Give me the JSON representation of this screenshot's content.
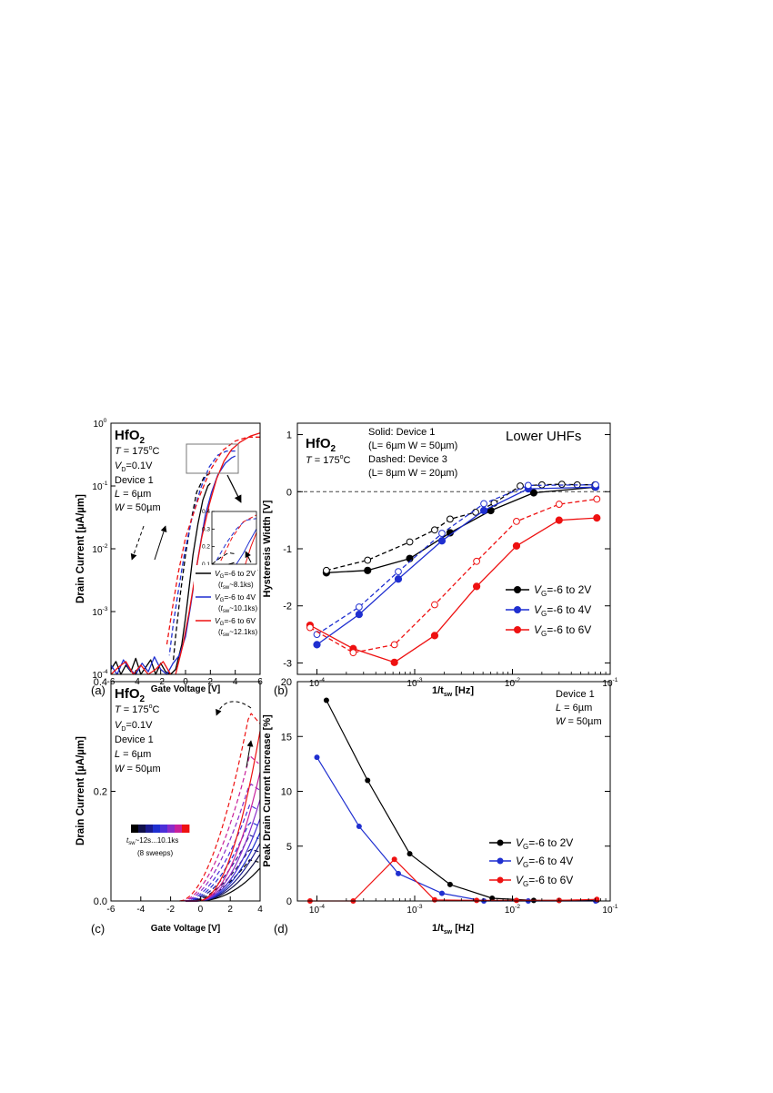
{
  "chart_data": [
    {
      "id": "a",
      "type": "line",
      "panel_label": "(a)",
      "xlabel": "Gate Voltage [V]",
      "ylabel": "Drain Current [µA/µm]",
      "yscale": "log",
      "xlim": [
        -6,
        6
      ],
      "ylim_exp": [
        -4,
        0
      ],
      "xticks": [
        "-6",
        "-4",
        "-2",
        "0",
        "2",
        "4",
        "6"
      ],
      "yticks": [
        {
          "exp": -4,
          "base": "10",
          "sup": "-4"
        },
        {
          "exp": -3,
          "base": "10",
          "sup": "-3"
        },
        {
          "exp": -2,
          "base": "10",
          "sup": "-2"
        },
        {
          "exp": -1,
          "base": "10",
          "sup": "-1"
        },
        {
          "exp": 0,
          "base": "10",
          "sup": "0"
        }
      ],
      "info": {
        "material": "HfO",
        "material_sub": "2",
        "temp_var": "T",
        "temp_value": " = 175",
        "temp_unit": "C",
        "temp_deg": "o",
        "vd_var": "V",
        "vd_sub": "D",
        "vd_value": "=0.1V",
        "device": "Device 1",
        "l_var": "L",
        "l_value": " = 6µm",
        "w_var": "W",
        "w_value": " = 50µm"
      },
      "legend": [
        {
          "vg": "V",
          "vg_sub": "G",
          "range": "=-6 to 2V",
          "t": "t",
          "t_sub": "sw",
          "tval": "~8.1ks",
          "color": "#000000"
        },
        {
          "vg": "V",
          "vg_sub": "G",
          "range": "=-6 to 4V",
          "t": "t",
          "t_sub": "sw",
          "tval": "~10.1ks",
          "color": "#1f2fd0"
        },
        {
          "vg": "V",
          "vg_sub": "G",
          "range": "=-6 to 6V",
          "t": "t",
          "t_sub": "sw",
          "tval": "~12.1ks",
          "color": "#ee1111"
        }
      ],
      "series": [
        {
          "name": "-6 to 2V forward",
          "color": "#000000",
          "dashed": false,
          "x": [
            -1.2,
            -0.8,
            -0.3,
            0.0,
            0.3,
            0.6,
            1.0,
            1.4,
            1.8,
            2.0
          ],
          "y": [
            0.0001,
            0.00012,
            0.0003,
            0.0008,
            0.0025,
            0.008,
            0.025,
            0.06,
            0.1,
            0.11
          ]
        },
        {
          "name": "-6 to 2V reverse",
          "color": "#000000",
          "dashed": true,
          "x": [
            2.0,
            1.5,
            0.9,
            0.4,
            0.0,
            -0.4,
            -0.8,
            -1.0
          ],
          "y": [
            0.16,
            0.14,
            0.08,
            0.025,
            0.008,
            0.002,
            0.0004,
            0.00015
          ]
        },
        {
          "name": "-6 to 4V forward",
          "color": "#1f2fd0",
          "dashed": false,
          "x": [
            -1.0,
            -0.5,
            0.0,
            0.4,
            0.8,
            1.2,
            1.6,
            2.1,
            2.6,
            3.2,
            3.7,
            4.0
          ],
          "y": [
            0.00015,
            0.0002,
            0.0004,
            0.0012,
            0.004,
            0.012,
            0.035,
            0.08,
            0.15,
            0.23,
            0.28,
            0.3
          ]
        },
        {
          "name": "-6 to 4V reverse",
          "color": "#1f2fd0",
          "dashed": true,
          "x": [
            4.0,
            3.3,
            2.6,
            1.9,
            1.2,
            0.5,
            -0.1,
            -0.6,
            -1.0,
            -1.3
          ],
          "y": [
            0.36,
            0.36,
            0.31,
            0.2,
            0.09,
            0.03,
            0.008,
            0.002,
            0.0006,
            0.0002
          ]
        },
        {
          "name": "-6 to 6V forward",
          "color": "#ee1111",
          "dashed": false,
          "x": [
            -0.8,
            -0.2,
            0.3,
            0.8,
            1.3,
            1.9,
            2.5,
            3.1,
            3.7,
            4.4,
            5.2,
            6.0
          ],
          "y": [
            0.0001,
            0.0003,
            0.001,
            0.004,
            0.015,
            0.05,
            0.13,
            0.25,
            0.38,
            0.5,
            0.62,
            0.7
          ]
        },
        {
          "name": "-6 to 6V reverse",
          "color": "#ee1111",
          "dashed": true,
          "x": [
            6.0,
            5.0,
            4.0,
            3.0,
            2.0,
            1.0,
            0.0,
            -0.6,
            -1.1,
            -1.5
          ],
          "y": [
            0.6,
            0.6,
            0.52,
            0.37,
            0.18,
            0.06,
            0.015,
            0.004,
            0.001,
            0.0003
          ]
        },
        {
          "name": "noise black",
          "color": "#000000",
          "dashed": false,
          "x": [
            -6.0,
            -5.6,
            -5.2,
            -4.8,
            -4.4,
            -4.0,
            -3.6,
            -3.2,
            -2.8,
            -2.4,
            -2.0,
            -1.6,
            -1.2
          ],
          "y": [
            0.00012,
            0.00016,
            0.0001,
            0.00014,
            0.00011,
            0.00018,
            0.0001,
            0.00013,
            0.00017,
            0.0001,
            0.00015,
            0.00011,
            0.0001
          ]
        },
        {
          "name": "noise blue",
          "color": "#1f2fd0",
          "dashed": false,
          "x": [
            -6.0,
            -5.5,
            -5.0,
            -4.5,
            -4.0,
            -3.5,
            -3.0,
            -2.5,
            -2.0,
            -1.5,
            -1.0
          ],
          "y": [
            0.00014,
            0.0001,
            0.00017,
            0.00012,
            0.0001,
            0.00015,
            0.00011,
            0.00019,
            0.00012,
            0.0001,
            0.00015
          ]
        },
        {
          "name": "noise red",
          "color": "#ee1111",
          "dashed": false,
          "x": [
            -6.0,
            -5.4,
            -4.8,
            -4.2,
            -3.6,
            -3.0,
            -2.4,
            -1.8,
            -1.2
          ],
          "y": [
            0.0001,
            0.00013,
            0.00016,
            0.0001,
            0.00014,
            0.0001,
            0.00012,
            0.00016,
            0.0001
          ]
        }
      ],
      "inset": {
        "xlim": [
          0,
          4
        ],
        "ylim": [
          0.1,
          0.4
        ],
        "xticks": [
          "0",
          "2",
          "4"
        ],
        "yticks": [
          "0.1",
          "0.2",
          "0.3",
          "0.4"
        ],
        "series": [
          {
            "color": "#000000",
            "dashed": true,
            "x": [
              0.0,
              0.8,
              1.5,
              2.0
            ],
            "y": [
              0.1,
              0.14,
              0.165,
              0.16
            ]
          },
          {
            "color": "#000000",
            "dashed": false,
            "x": [
              1.5,
              1.8,
              2.0
            ],
            "y": [
              0.1,
              0.105,
              0.11
            ]
          },
          {
            "color": "#1f2fd0",
            "dashed": true,
            "x": [
              0.4,
              1.3,
              2.2,
              3.0,
              4.0
            ],
            "y": [
              0.12,
              0.22,
              0.3,
              0.35,
              0.36
            ]
          },
          {
            "color": "#1f2fd0",
            "dashed": false,
            "x": [
              2.2,
              2.8,
              3.3,
              4.0
            ],
            "y": [
              0.1,
              0.16,
              0.22,
              0.3
            ]
          },
          {
            "color": "#ee1111",
            "dashed": true,
            "x": [
              0.8,
              1.8,
              2.8,
              4.0
            ],
            "y": [
              0.12,
              0.25,
              0.34,
              0.38
            ]
          },
          {
            "color": "#ee1111",
            "dashed": false,
            "x": [
              3.0,
              3.5,
              4.0
            ],
            "y": [
              0.1,
              0.2,
              0.28
            ]
          }
        ]
      }
    },
    {
      "id": "b",
      "type": "line",
      "panel_label": "(b)",
      "xlabel": "1/t",
      "xlabel_sub": "sw",
      "xlabel_tail": " [Hz]",
      "ylabel": "Hysteresis Width [V]",
      "xscale": "log",
      "xlim_exp": [
        -4.2,
        -1
      ],
      "ylim": [
        -3.2,
        1.2
      ],
      "xticks": [
        {
          "exp": -4,
          "base": "10",
          "sup": "-4"
        },
        {
          "exp": -3,
          "base": "10",
          "sup": "-3"
        },
        {
          "exp": -2,
          "base": "10",
          "sup": "-2"
        },
        {
          "exp": -1,
          "base": "10",
          "sup": "-1"
        }
      ],
      "yticks": [
        "-3",
        "-2",
        "-1",
        "0",
        "1"
      ],
      "info": {
        "material": "HfO",
        "material_sub": "2",
        "temp_var": "T",
        "temp_value": " = 175",
        "temp_unit": "C",
        "temp_deg": "o",
        "solid": "Solid: Device 1",
        "solid_dims": "(L= 6µm W = 50µm)",
        "dashed": "Dashed: Device 3",
        "dashed_dims": "(L= 8µm W = 20µm)",
        "tag": "Lower UHFs"
      },
      "legend": [
        {
          "vg": "V",
          "vg_sub": "G",
          "range": "=-6 to 2V",
          "color": "#000000"
        },
        {
          "vg": "V",
          "vg_sub": "G",
          "range": "=-6 to 4V",
          "color": "#1f2fd0"
        },
        {
          "vg": "V",
          "vg_sub": "G",
          "range": "=-6 to 6V",
          "color": "#ee1111"
        }
      ],
      "series": [
        {
          "name": "-6 to 2V Device 1",
          "color": "#000000",
          "dashed": false,
          "filled": true,
          "x": [
            0.000125,
            0.00033,
            0.00089,
            0.0023,
            0.006,
            0.0165,
            0.07
          ],
          "y": [
            -1.42,
            -1.38,
            -1.17,
            -0.72,
            -0.33,
            -0.02,
            0.08
          ]
        },
        {
          "name": "-6 to 2V Device 3",
          "color": "#000000",
          "dashed": true,
          "filled": false,
          "x": [
            0.000125,
            0.00033,
            0.00089,
            0.0016,
            0.0023,
            0.0042,
            0.0065,
            0.012,
            0.02,
            0.032,
            0.046,
            0.07
          ],
          "y": [
            -1.38,
            -1.2,
            -0.88,
            -0.67,
            -0.48,
            -0.36,
            -0.2,
            0.1,
            0.12,
            0.13,
            0.12,
            0.12
          ]
        },
        {
          "name": "-6 to 4V Device 1",
          "color": "#1f2fd0",
          "dashed": false,
          "filled": true,
          "x": [
            0.0001,
            0.00027,
            0.00068,
            0.0019,
            0.0051,
            0.0145,
            0.071
          ],
          "y": [
            -2.68,
            -2.15,
            -1.53,
            -0.86,
            -0.33,
            0.05,
            0.08
          ]
        },
        {
          "name": "-6 to 4V Device 3",
          "color": "#1f2fd0",
          "dashed": true,
          "filled": false,
          "x": [
            0.0001,
            0.00027,
            0.00068,
            0.0019,
            0.0051,
            0.0145,
            0.071
          ],
          "y": [
            -2.5,
            -2.02,
            -1.4,
            -0.73,
            -0.21,
            0.11,
            0.12
          ]
        },
        {
          "name": "-6 to 6V Device 1",
          "color": "#ee1111",
          "dashed": false,
          "filled": true,
          "x": [
            8.5e-05,
            0.000235,
            0.00062,
            0.0016,
            0.0043,
            0.011,
            0.03,
            0.073
          ],
          "y": [
            -2.34,
            -2.75,
            -2.99,
            -2.52,
            -1.66,
            -0.95,
            -0.5,
            -0.46
          ]
        },
        {
          "name": "-6 to 6V Device 3",
          "color": "#ee1111",
          "dashed": true,
          "filled": false,
          "x": [
            8.5e-05,
            0.000235,
            0.00062,
            0.0016,
            0.0043,
            0.011,
            0.03,
            0.073
          ],
          "y": [
            -2.38,
            -2.82,
            -2.68,
            -1.98,
            -1.22,
            -0.52,
            -0.22,
            -0.13
          ]
        }
      ]
    },
    {
      "id": "c",
      "type": "line",
      "panel_label": "(c)",
      "xlabel": "Gate Voltage [V]",
      "ylabel": "Drain Current [µA/µm]",
      "xlim": [
        -6,
        4
      ],
      "ylim": [
        0,
        0.4
      ],
      "xticks": [
        "-6",
        "-4",
        "-2",
        "0",
        "2",
        "4"
      ],
      "yticks": [
        "0.0",
        "0.2",
        "0.4"
      ],
      "info": {
        "material": "HfO",
        "material_sub": "2",
        "temp_var": "T",
        "temp_value": " = 175",
        "temp_unit": "C",
        "temp_deg": "o",
        "vd_var": "V",
        "vd_sub": "D",
        "vd_value": "=0.1V",
        "device": "Device 1",
        "l_var": "L",
        "l_value": " = 6µm",
        "w_var": "W",
        "w_value": " = 50µm"
      },
      "colorbar": {
        "label_t": "t",
        "label_sub": "sw",
        "label_range": "~12s...10.1ks",
        "note": "(8 sweeps)",
        "colors": [
          "#000000",
          "#10104a",
          "#1a1a90",
          "#1f2fd0",
          "#4b2fd8",
          "#8a2cc8",
          "#c9209a",
          "#ee1111"
        ]
      },
      "sweeps": [
        {
          "color": "#000000",
          "peak": 0.06,
          "dpeak": 0.075,
          "dx0": -0.7
        },
        {
          "color": "#10104a",
          "peak": 0.085,
          "dpeak": 0.095,
          "dx0": -0.8
        },
        {
          "color": "#1a1a90",
          "peak": 0.105,
          "dpeak": 0.12,
          "dx0": -0.9
        },
        {
          "color": "#1f2fd0",
          "peak": 0.125,
          "dpeak": 0.145,
          "dx0": -1.0
        },
        {
          "color": "#4b2fd8",
          "peak": 0.15,
          "dpeak": 0.175,
          "dx0": -1.1
        },
        {
          "color": "#8a2cc8",
          "peak": 0.185,
          "dpeak": 0.215,
          "dx0": -1.2
        },
        {
          "color": "#c9209a",
          "peak": 0.235,
          "dpeak": 0.265,
          "dx0": -1.3
        },
        {
          "color": "#ee1111",
          "peak": 0.31,
          "dpeak": 0.345,
          "dx0": -1.4
        }
      ]
    },
    {
      "id": "d",
      "type": "line",
      "panel_label": "(d)",
      "xlabel": "1/t",
      "xlabel_sub": "sw",
      "xlabel_tail": " [Hz]",
      "ylabel": "Peak Drain Current Increase [%]",
      "xscale": "log",
      "xlim_exp": [
        -4.2,
        -1
      ],
      "ylim": [
        0,
        20
      ],
      "xticks": [
        {
          "exp": -4,
          "base": "10",
          "sup": "-4"
        },
        {
          "exp": -3,
          "base": "10",
          "sup": "-3"
        },
        {
          "exp": -2,
          "base": "10",
          "sup": "-2"
        },
        {
          "exp": -1,
          "base": "10",
          "sup": "-1"
        }
      ],
      "yticks": [
        "0",
        "5",
        "10",
        "15",
        "20"
      ],
      "info": {
        "device": "Device 1",
        "l_var": "L",
        "l_value": " = 6µm",
        "w_var": "W",
        "w_value": " = 50µm"
      },
      "legend": [
        {
          "vg": "V",
          "vg_sub": "G",
          "range": "=-6 to 2V",
          "color": "#000000"
        },
        {
          "vg": "V",
          "vg_sub": "G",
          "range": "=-6 to 4V",
          "color": "#1f2fd0"
        },
        {
          "vg": "V",
          "vg_sub": "G",
          "range": "=-6 to 6V",
          "color": "#ee1111"
        }
      ],
      "series": [
        {
          "name": "-6 to 2V",
          "color": "#000000",
          "x": [
            0.000125,
            0.00033,
            0.00089,
            0.0023,
            0.0062,
            0.0165,
            0.03,
            0.073
          ],
          "y": [
            18.3,
            11.0,
            4.3,
            1.5,
            0.25,
            0.05,
            0.05,
            0.05
          ]
        },
        {
          "name": "-6 to 4V",
          "color": "#1f2fd0",
          "x": [
            0.0001,
            0.00027,
            0.00068,
            0.0019,
            0.0051,
            0.0145,
            0.071
          ],
          "y": [
            13.1,
            6.8,
            2.5,
            0.7,
            0.0,
            0.0,
            0.0
          ]
        },
        {
          "name": "-6 to 6V",
          "color": "#ee1111",
          "x": [
            8.5e-05,
            0.000235,
            0.00062,
            0.0016,
            0.0043,
            0.011,
            0.03,
            0.073
          ],
          "y": [
            0.0,
            0.0,
            3.8,
            0.1,
            0.05,
            0.05,
            0.05,
            0.15
          ]
        }
      ]
    }
  ]
}
